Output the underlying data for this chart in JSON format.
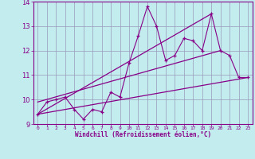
{
  "xlabel": "Windchill (Refroidissement éolien,°C)",
  "xlim": [
    -0.5,
    23.5
  ],
  "ylim": [
    9,
    14
  ],
  "yticks": [
    9,
    10,
    11,
    12,
    13,
    14
  ],
  "xticks": [
    0,
    1,
    2,
    3,
    4,
    5,
    6,
    7,
    8,
    9,
    10,
    11,
    12,
    13,
    14,
    15,
    16,
    17,
    18,
    19,
    20,
    21,
    22,
    23
  ],
  "bg_color": "#c2ecee",
  "grid_color": "#9999bb",
  "line_color": "#880088",
  "data_x": [
    0,
    1,
    2,
    3,
    4,
    5,
    6,
    7,
    8,
    9,
    10,
    11,
    12,
    13,
    14,
    15,
    16,
    17,
    18,
    19,
    20,
    21,
    22,
    23
  ],
  "data_y": [
    9.4,
    9.9,
    10.0,
    10.1,
    9.6,
    9.2,
    9.6,
    9.5,
    10.3,
    10.1,
    11.5,
    12.6,
    13.8,
    13.0,
    11.6,
    11.8,
    12.5,
    12.4,
    12.0,
    13.5,
    12.0,
    11.8,
    10.9,
    10.9
  ],
  "upper_line_x": [
    0,
    19
  ],
  "upper_line_y": [
    9.4,
    13.5
  ],
  "lower_line_x": [
    0,
    23
  ],
  "lower_line_y": [
    9.4,
    10.9
  ],
  "mid_line_x": [
    0,
    20
  ],
  "mid_line_y": [
    9.9,
    12.0
  ]
}
